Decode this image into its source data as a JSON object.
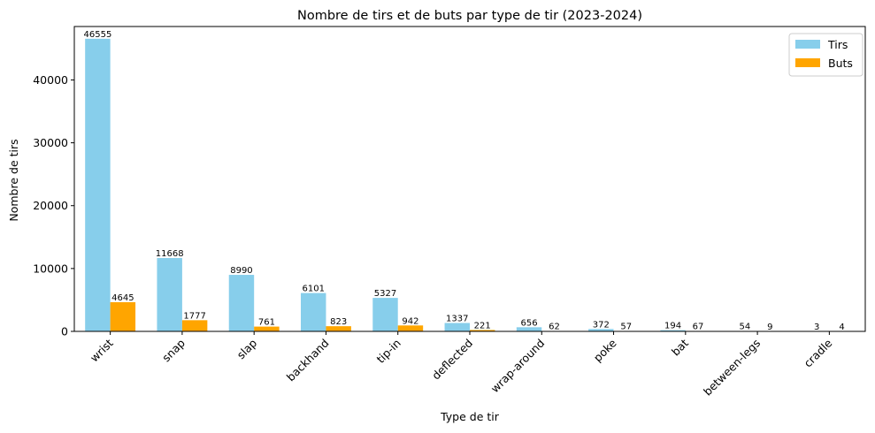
{
  "chart_data": {
    "type": "bar",
    "title": "Nombre de tirs et de buts par type de tir (2023-2024)",
    "xlabel": "Type de tir",
    "ylabel": "Nombre de tirs",
    "categories": [
      "wrist",
      "snap",
      "slap",
      "backhand",
      "tip-in",
      "deflected",
      "wrap-around",
      "poke",
      "bat",
      "between-legs",
      "cradle"
    ],
    "series": [
      {
        "name": "Tirs",
        "color": "#87CEEB",
        "values": [
          46555,
          11668,
          8990,
          6101,
          5327,
          1337,
          656,
          372,
          194,
          54,
          3
        ]
      },
      {
        "name": "Buts",
        "color": "#FFA500",
        "values": [
          4645,
          1777,
          761,
          823,
          942,
          221,
          62,
          57,
          67,
          9,
          4
        ]
      }
    ],
    "ylim": [
      0,
      48500
    ],
    "yticks": [
      0,
      10000,
      20000,
      30000,
      40000
    ],
    "grid": false,
    "legend": "top-right",
    "data_labels": true
  }
}
